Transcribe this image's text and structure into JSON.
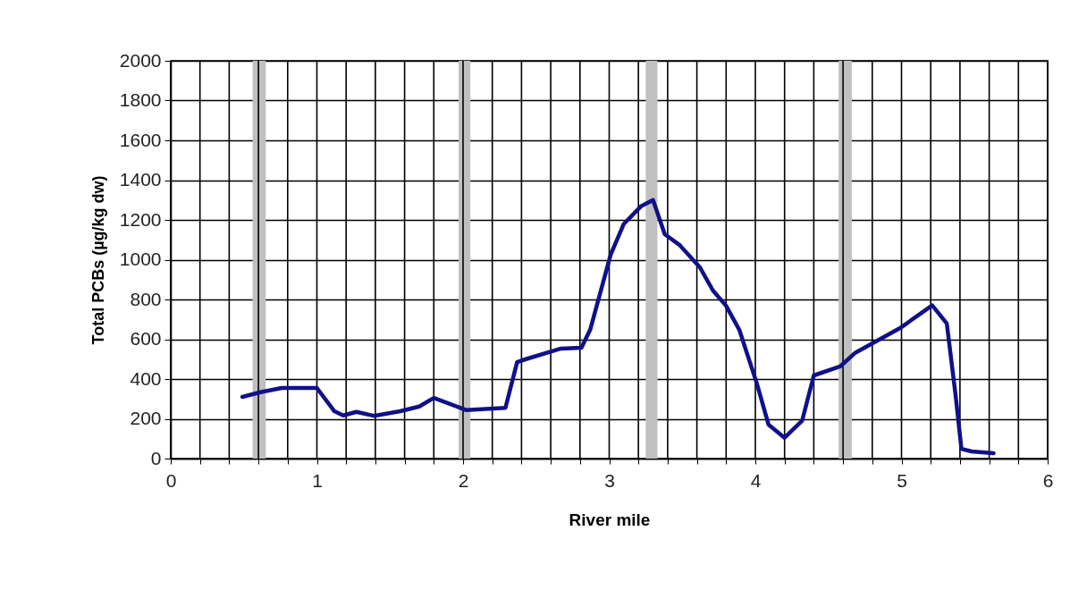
{
  "chart_data": {
    "type": "line",
    "xlabel": "River mile",
    "ylabel": "Total PCBs (µg/kg dw)",
    "x": [
      0.49,
      0.62,
      0.76,
      1.0,
      1.12,
      1.18,
      1.27,
      1.39,
      1.57,
      1.7,
      1.8,
      2.02,
      2.29,
      2.37,
      2.43,
      2.67,
      2.81,
      2.87,
      3.01,
      3.1,
      3.22,
      3.3,
      3.38,
      3.48,
      3.62,
      3.71,
      3.8,
      3.89,
      4.01,
      4.09,
      4.2,
      4.32,
      4.4,
      4.58,
      4.68,
      4.99,
      5.21,
      5.31,
      5.37,
      5.41,
      5.48,
      5.63
    ],
    "series": [
      {
        "color": "#10108a",
        "values": [
          310,
          335,
          355,
          355,
          238,
          217,
          235,
          215,
          238,
          262,
          305,
          244,
          255,
          485,
          500,
          553,
          557,
          648,
          1025,
          1180,
          1270,
          1300,
          1128,
          1075,
          962,
          845,
          768,
          648,
          378,
          171,
          105,
          190,
          418,
          463,
          530,
          656,
          770,
          679,
          319,
          49,
          36,
          27
        ]
      }
    ],
    "xlim": [
      0,
      6
    ],
    "xticks": [
      0,
      {
        "value": 0.2,
        "label": null
      },
      {
        "value": 0.4,
        "label": null
      },
      {
        "value": 0.6,
        "label": null
      },
      {
        "value": 0.8,
        "label": null
      },
      1,
      {
        "value": 1.2,
        "label": null
      },
      {
        "value": 1.4,
        "label": null
      },
      {
        "value": 1.6,
        "label": null
      },
      {
        "value": 1.8,
        "label": null
      },
      2,
      {
        "value": 2.2,
        "label": null
      },
      {
        "value": 2.4,
        "label": null
      },
      {
        "value": 2.6,
        "label": null
      },
      {
        "value": 2.8,
        "label": null
      },
      3,
      {
        "value": 3.2,
        "label": null
      },
      {
        "value": 3.4,
        "label": null
      },
      {
        "value": 3.6,
        "label": null
      },
      {
        "value": 3.8,
        "label": null
      },
      4,
      {
        "value": 4.2,
        "label": null
      },
      {
        "value": 4.4,
        "label": null
      },
      {
        "value": 4.6,
        "label": null
      },
      {
        "value": 4.8,
        "label": null
      },
      5,
      {
        "value": 5.2,
        "label": null
      },
      {
        "value": 5.4,
        "label": null
      },
      {
        "value": 5.6,
        "label": null
      },
      {
        "value": 5.8,
        "label": null
      },
      6
    ],
    "ylim": [
      0,
      2000
    ],
    "yticks": [
      0,
      200,
      400,
      600,
      800,
      1000,
      1200,
      1400,
      1600,
      1800,
      2000
    ],
    "grid": true,
    "line_style": "solid",
    "marker": "none",
    "bands": [
      {
        "axis": "x",
        "from": 0.56,
        "to": 0.65,
        "color": "#c0c0c0"
      },
      {
        "axis": "x",
        "from": 1.97,
        "to": 2.05,
        "color": "#c0c0c0"
      },
      {
        "axis": "x",
        "from": 3.25,
        "to": 3.33,
        "color": "#c0c0c0"
      },
      {
        "axis": "x",
        "from": 4.57,
        "to": 4.66,
        "color": "#c0c0c0"
      }
    ]
  }
}
